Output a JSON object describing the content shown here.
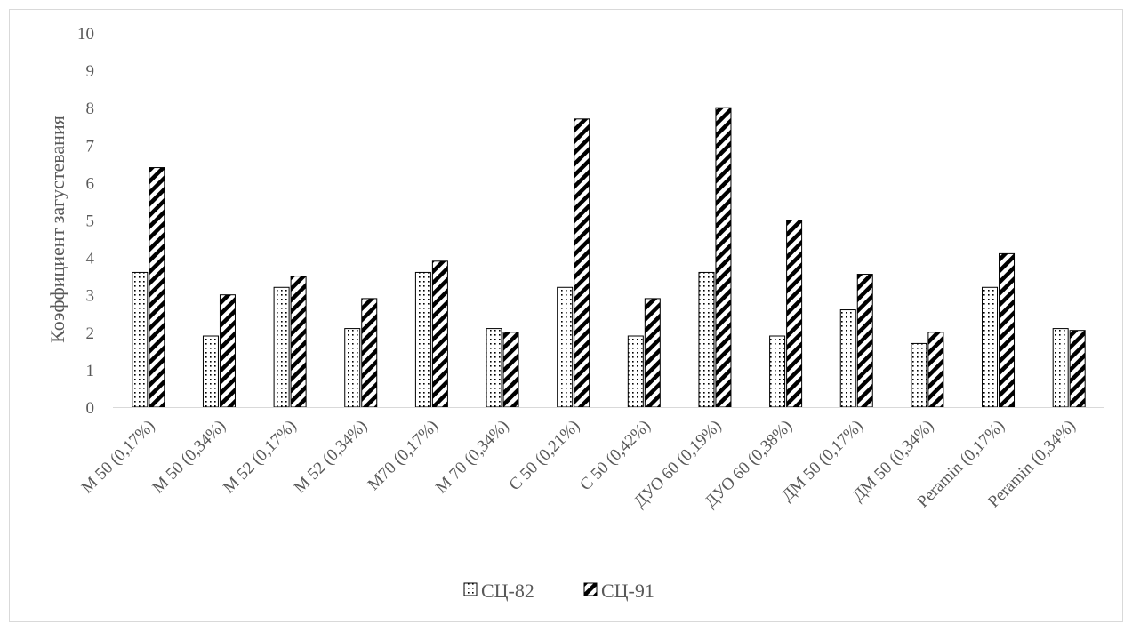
{
  "chart_data": {
    "type": "bar",
    "title": "",
    "xlabel": "",
    "ylabel": "Коэффициент загустевания",
    "ylim": [
      0,
      10
    ],
    "yticks": [
      0,
      1,
      2,
      3,
      4,
      5,
      6,
      7,
      8,
      9,
      10
    ],
    "grid": false,
    "legend_position": "bottom",
    "categories": [
      "М 50 (0,17%)",
      "М 50 (0,34%)",
      "М 52 (0,17%)",
      "М 52 (0,34%)",
      "М70 (0,17%)",
      "М 70 (0,34%)",
      "С 50 (0,21%)",
      "С 50 (0,42%)",
      "ДУО 60 (0,19%)",
      "ДУО 60 (0,38%)",
      "ДМ 50 (0,17%)",
      "ДМ 50 (0,34%)",
      "Peramin (0,17%)",
      "Peramin (0,34%)"
    ],
    "series": [
      {
        "name": "СЦ-82",
        "pattern": "dots",
        "color": "#000000",
        "values": [
          3.6,
          1.9,
          3.2,
          2.1,
          3.6,
          2.1,
          3.2,
          1.9,
          3.6,
          1.9,
          2.6,
          1.7,
          3.2,
          2.1
        ]
      },
      {
        "name": "СЦ-91",
        "pattern": "diagonal-stripes",
        "color": "#000000",
        "values": [
          6.4,
          3.0,
          3.5,
          2.9,
          3.9,
          2.0,
          7.7,
          2.9,
          8.0,
          5.0,
          3.55,
          2.0,
          4.1,
          2.05
        ]
      }
    ]
  }
}
